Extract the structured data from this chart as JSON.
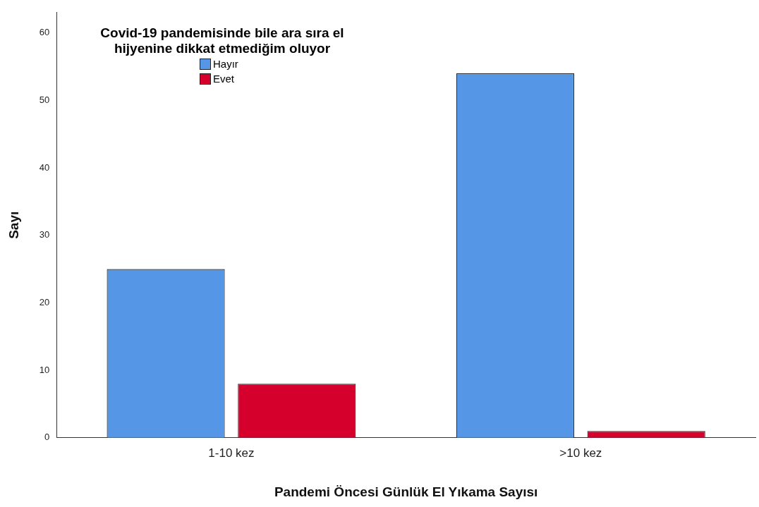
{
  "chart_data": {
    "type": "bar",
    "xlabel": "Pandemi Öncesi Günlük El Yıkama Sayısı",
    "ylabel": "Sayı",
    "legend_title": "Covid-19 pandemisinde bile ara sıra el hijyenine dikkat etmediğim oluyor",
    "categories": [
      "1-10 kez",
      ">10 kez"
    ],
    "series": [
      {
        "name": "Hayır",
        "color": "#5596e6",
        "values": [
          25,
          54
        ]
      },
      {
        "name": "Evet",
        "color": "#d6002c",
        "values": [
          8,
          1
        ]
      }
    ],
    "ylim": [
      0,
      63
    ],
    "yticks": [
      0,
      10,
      20,
      30,
      40,
      50,
      60
    ],
    "grid": false,
    "legend": "top left"
  }
}
